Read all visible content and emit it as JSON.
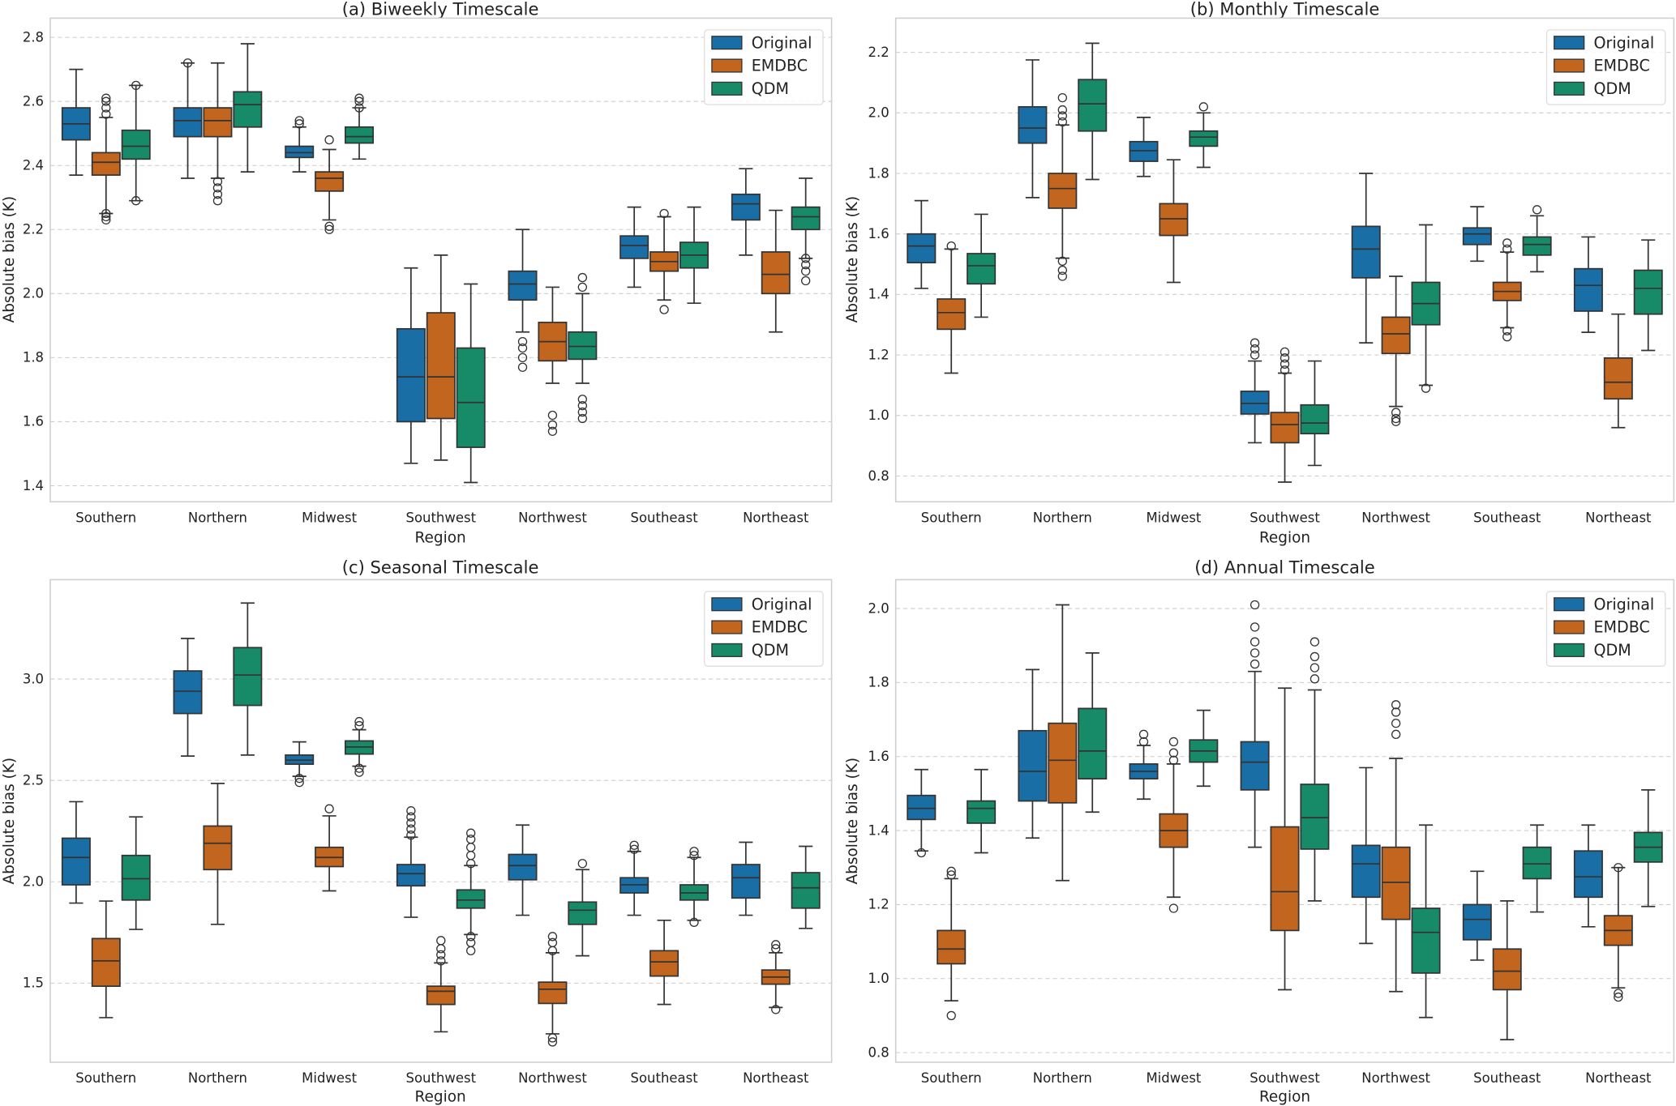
{
  "legend": [
    "Original",
    "EMDBC",
    "QDM"
  ],
  "colors": {
    "Original": "#1a6ea6",
    "EMDBC": "#c2651f",
    "QDM": "#178a68"
  },
  "chart_data": [
    {
      "type": "box",
      "title": "(a) Biweekly Timescale",
      "xlabel": "Region",
      "ylabel": "Absolute bias (K)",
      "ylim": [
        1.35,
        2.86
      ],
      "yticks": [
        1.4,
        1.6,
        1.8,
        2.0,
        2.2,
        2.4,
        2.6,
        2.8
      ],
      "ytick_labels": [
        "1.4",
        "1.6",
        "1.8",
        "2.0",
        "2.2",
        "2.4",
        "2.6",
        "2.8"
      ],
      "grid": "y dashed",
      "legend_position": "top-right",
      "categories": [
        "Southern",
        "Northern",
        "Midwest",
        "Southwest",
        "Northwest",
        "Southeast",
        "Northeast"
      ],
      "series": [
        {
          "name": "Original",
          "boxes": [
            [
              2.37,
              2.48,
              2.53,
              2.58,
              2.7
            ],
            [
              2.36,
              2.49,
              2.54,
              2.58,
              2.72
            ],
            [
              2.38,
              2.425,
              2.44,
              2.46,
              2.52
            ],
            [
              1.47,
              1.6,
              1.74,
              1.89,
              2.08
            ],
            [
              1.88,
              1.98,
              2.03,
              2.07,
              2.2
            ],
            [
              2.02,
              2.11,
              2.15,
              2.18,
              2.27
            ],
            [
              2.12,
              2.23,
              2.28,
              2.31,
              2.39
            ]
          ],
          "outliers": [
            [],
            [
              2.72
            ],
            [
              2.53,
              2.54
            ],
            [],
            [
              1.77,
              1.8,
              1.83,
              1.85
            ],
            [],
            []
          ]
        },
        {
          "name": "EMDBC",
          "boxes": [
            [
              2.25,
              2.37,
              2.41,
              2.44,
              2.55
            ],
            [
              2.36,
              2.49,
              2.54,
              2.58,
              2.72
            ],
            [
              2.23,
              2.32,
              2.36,
              2.38,
              2.45
            ],
            [
              1.48,
              1.61,
              1.74,
              1.94,
              2.12
            ],
            [
              1.72,
              1.79,
              1.85,
              1.91,
              2.02
            ],
            [
              1.98,
              2.07,
              2.1,
              2.13,
              2.24
            ],
            [
              1.88,
              2.0,
              2.06,
              2.13,
              2.26
            ]
          ],
          "outliers": [
            [
              2.56,
              2.58,
              2.6,
              2.61,
              2.23,
              2.24,
              2.25
            ],
            [
              2.29,
              2.31,
              2.33,
              2.35
            ],
            [
              2.48,
              2.21,
              2.2
            ],
            [],
            [
              1.57,
              1.59,
              1.62
            ],
            [
              2.25,
              1.95
            ],
            []
          ]
        },
        {
          "name": "QDM",
          "boxes": [
            [
              2.29,
              2.42,
              2.46,
              2.51,
              2.65
            ],
            [
              2.38,
              2.52,
              2.59,
              2.63,
              2.78
            ],
            [
              2.42,
              2.47,
              2.49,
              2.52,
              2.58
            ],
            [
              1.41,
              1.52,
              1.66,
              1.83,
              2.03
            ],
            [
              1.72,
              1.795,
              1.835,
              1.88,
              2.0
            ],
            [
              1.97,
              2.08,
              2.12,
              2.16,
              2.27
            ],
            [
              2.11,
              2.2,
              2.24,
              2.27,
              2.36
            ]
          ],
          "outliers": [
            [
              2.65,
              2.29
            ],
            [],
            [
              2.58,
              2.6,
              2.61
            ],
            [],
            [
              1.61,
              1.63,
              1.65,
              1.67,
              2.02,
              2.05
            ],
            [],
            [
              2.04,
              2.07,
              2.09,
              2.11
            ]
          ]
        }
      ]
    },
    {
      "type": "box",
      "title": "(b) Monthly Timescale",
      "xlabel": "Region",
      "ylabel": "Absolute bias (K)",
      "ylim": [
        0.715,
        2.313
      ],
      "yticks": [
        0.8,
        1.0,
        1.2,
        1.4,
        1.6,
        1.8,
        2.0,
        2.2
      ],
      "ytick_labels": [
        "0.8",
        "1.0",
        "1.2",
        "1.4",
        "1.6",
        "1.8",
        "2.0",
        "2.2"
      ],
      "grid": "y dashed",
      "legend_position": "top-right",
      "categories": [
        "Southern",
        "Northern",
        "Midwest",
        "Southwest",
        "Northwest",
        "Southeast",
        "Northeast"
      ],
      "series": [
        {
          "name": "Original",
          "boxes": [
            [
              1.42,
              1.505,
              1.56,
              1.6,
              1.71
            ],
            [
              1.72,
              1.9,
              1.95,
              2.02,
              2.175
            ],
            [
              1.79,
              1.84,
              1.875,
              1.905,
              1.985
            ],
            [
              0.91,
              1.005,
              1.04,
              1.08,
              1.18
            ],
            [
              1.24,
              1.455,
              1.55,
              1.625,
              1.8
            ],
            [
              1.51,
              1.565,
              1.6,
              1.62,
              1.69
            ],
            [
              1.275,
              1.345,
              1.43,
              1.485,
              1.59
            ]
          ],
          "outliers": [
            [],
            [],
            [],
            [
              1.2,
              1.22,
              1.24
            ],
            [],
            [],
            []
          ]
        },
        {
          "name": "EMDBC",
          "boxes": [
            [
              1.14,
              1.285,
              1.34,
              1.385,
              1.55
            ],
            [
              1.52,
              1.685,
              1.75,
              1.8,
              1.96
            ],
            [
              1.44,
              1.595,
              1.65,
              1.7,
              1.845
            ],
            [
              0.78,
              0.91,
              0.97,
              1.01,
              1.14
            ],
            [
              1.03,
              1.205,
              1.27,
              1.325,
              1.46
            ],
            [
              1.29,
              1.38,
              1.41,
              1.44,
              1.54
            ],
            [
              0.96,
              1.055,
              1.11,
              1.19,
              1.335
            ]
          ],
          "outliers": [
            [
              1.56
            ],
            [
              1.97,
              1.99,
              2.01,
              2.05,
              1.46,
              1.48,
              1.51
            ],
            [],
            [
              1.15,
              1.17,
              1.19,
              1.21
            ],
            [
              0.98,
              0.99,
              1.01
            ],
            [
              1.55,
              1.57,
              1.26,
              1.28
            ],
            []
          ]
        },
        {
          "name": "QDM",
          "boxes": [
            [
              1.325,
              1.435,
              1.495,
              1.535,
              1.665
            ],
            [
              1.78,
              1.94,
              2.03,
              2.11,
              2.23
            ],
            [
              1.82,
              1.89,
              1.92,
              1.94,
              2.0
            ],
            [
              0.835,
              0.94,
              0.975,
              1.035,
              1.18
            ],
            [
              1.1,
              1.3,
              1.37,
              1.44,
              1.63
            ],
            [
              1.475,
              1.53,
              1.565,
              1.59,
              1.66
            ],
            [
              1.215,
              1.335,
              1.42,
              1.48,
              1.58
            ]
          ],
          "outliers": [
            [],
            [],
            [
              2.02
            ],
            [],
            [
              1.09
            ],
            [
              1.68
            ],
            []
          ]
        }
      ]
    },
    {
      "type": "box",
      "title": "(c) Seasonal Timescale",
      "xlabel": "Region",
      "ylabel": "Absolute bias (K)",
      "ylim": [
        1.11,
        3.49
      ],
      "yticks": [
        1.5,
        2.0,
        2.5,
        3.0
      ],
      "ytick_labels": [
        "1.5",
        "2.0",
        "2.5",
        "3.0"
      ],
      "grid": "y dashed",
      "legend_position": "top-right",
      "categories": [
        "Southern",
        "Northern",
        "Midwest",
        "Southwest",
        "Northwest",
        "Southeast",
        "Northeast"
      ],
      "series": [
        {
          "name": "Original",
          "boxes": [
            [
              1.895,
              1.985,
              2.12,
              2.215,
              2.395
            ],
            [
              2.62,
              2.83,
              2.94,
              3.04,
              3.2
            ],
            [
              2.52,
              2.58,
              2.6,
              2.625,
              2.69
            ],
            [
              1.825,
              1.98,
              2.04,
              2.085,
              2.22
            ],
            [
              1.835,
              2.01,
              2.08,
              2.135,
              2.28
            ],
            [
              1.835,
              1.945,
              1.985,
              2.02,
              2.15
            ],
            [
              1.835,
              1.92,
              2.02,
              2.085,
              2.195
            ]
          ],
          "outliers": [
            [],
            [],
            [
              2.49,
              2.51
            ],
            [
              2.23,
              2.26,
              2.29,
              2.32,
              2.35
            ],
            [],
            [
              2.16,
              2.18
            ],
            []
          ]
        },
        {
          "name": "EMDBC",
          "boxes": [
            [
              1.33,
              1.485,
              1.61,
              1.72,
              1.905
            ],
            [
              1.79,
              2.06,
              2.19,
              2.275,
              2.485
            ],
            [
              1.955,
              2.075,
              2.12,
              2.17,
              2.325
            ],
            [
              1.26,
              1.395,
              1.46,
              1.485,
              1.6
            ],
            [
              1.25,
              1.4,
              1.47,
              1.505,
              1.65
            ],
            [
              1.395,
              1.535,
              1.605,
              1.66,
              1.81
            ],
            [
              1.38,
              1.495,
              1.53,
              1.565,
              1.65
            ]
          ],
          "outliers": [
            [],
            [],
            [
              2.36
            ],
            [
              1.61,
              1.64,
              1.67,
              1.71
            ],
            [
              1.66,
              1.7,
              1.73,
              1.21,
              1.23
            ],
            [],
            [
              1.67,
              1.69,
              1.37
            ]
          ]
        },
        {
          "name": "QDM",
          "boxes": [
            [
              1.765,
              1.91,
              2.015,
              2.13,
              2.32
            ],
            [
              2.625,
              2.87,
              3.02,
              3.155,
              3.375
            ],
            [
              2.57,
              2.63,
              2.665,
              2.695,
              2.75
            ],
            [
              1.74,
              1.87,
              1.91,
              1.96,
              2.08
            ],
            [
              1.635,
              1.79,
              1.86,
              1.9,
              2.06
            ],
            [
              1.81,
              1.91,
              1.945,
              1.985,
              2.12
            ],
            [
              1.77,
              1.87,
              1.97,
              2.045,
              2.175
            ]
          ],
          "outliers": [
            [],
            [],
            [
              2.54,
              2.56,
              2.77,
              2.79
            ],
            [
              2.09,
              2.13,
              2.17,
              2.21,
              2.24,
              1.66,
              1.7,
              1.73
            ],
            [
              2.09
            ],
            [
              2.13,
              2.15,
              1.8
            ],
            []
          ]
        }
      ]
    },
    {
      "type": "box",
      "title": "(d) Annual Timescale",
      "xlabel": "Region",
      "ylabel": "Absolute bias (K)",
      "ylim": [
        0.774,
        2.078
      ],
      "yticks": [
        0.8,
        1.0,
        1.2,
        1.4,
        1.6,
        1.8,
        2.0
      ],
      "ytick_labels": [
        "0.8",
        "1.0",
        "1.2",
        "1.4",
        "1.6",
        "1.8",
        "2.0"
      ],
      "grid": "y dashed",
      "legend_position": "top-right",
      "categories": [
        "Southern",
        "Northern",
        "Midwest",
        "Southwest",
        "Northwest",
        "Southeast",
        "Northeast"
      ],
      "series": [
        {
          "name": "Original",
          "boxes": [
            [
              1.345,
              1.43,
              1.46,
              1.495,
              1.565
            ],
            [
              1.38,
              1.48,
              1.56,
              1.67,
              1.835
            ],
            [
              1.485,
              1.54,
              1.56,
              1.58,
              1.63
            ],
            [
              1.355,
              1.51,
              1.585,
              1.64,
              1.83
            ],
            [
              1.095,
              1.22,
              1.31,
              1.36,
              1.57
            ],
            [
              1.05,
              1.105,
              1.16,
              1.2,
              1.29
            ],
            [
              1.14,
              1.22,
              1.275,
              1.345,
              1.415
            ]
          ],
          "outliers": [
            [
              1.34
            ],
            [],
            [
              1.64,
              1.66
            ],
            [
              1.85,
              1.88,
              1.91,
              1.95,
              2.01
            ],
            [],
            [],
            []
          ]
        },
        {
          "name": "EMDBC",
          "boxes": [
            [
              0.94,
              1.04,
              1.08,
              1.13,
              1.27
            ],
            [
              1.265,
              1.475,
              1.59,
              1.69,
              2.01
            ],
            [
              1.22,
              1.355,
              1.4,
              1.445,
              1.58
            ],
            [
              0.97,
              1.13,
              1.235,
              1.41,
              1.785
            ],
            [
              0.965,
              1.16,
              1.26,
              1.355,
              1.595
            ],
            [
              0.835,
              0.97,
              1.02,
              1.08,
              1.21
            ],
            [
              0.975,
              1.09,
              1.13,
              1.17,
              1.3
            ]
          ],
          "outliers": [
            [
              1.28,
              1.29,
              0.9
            ],
            [],
            [
              1.59,
              1.61,
              1.64,
              1.19
            ],
            [],
            [
              1.66,
              1.69,
              1.72,
              1.74
            ],
            [],
            [
              1.3,
              0.95,
              0.96
            ]
          ]
        },
        {
          "name": "QDM",
          "boxes": [
            [
              1.34,
              1.42,
              1.46,
              1.48,
              1.565
            ],
            [
              1.45,
              1.54,
              1.615,
              1.73,
              1.88
            ],
            [
              1.52,
              1.585,
              1.615,
              1.645,
              1.725
            ],
            [
              1.21,
              1.35,
              1.435,
              1.525,
              1.78
            ],
            [
              0.895,
              1.015,
              1.125,
              1.19,
              1.415
            ],
            [
              1.18,
              1.27,
              1.31,
              1.355,
              1.415
            ],
            [
              1.195,
              1.315,
              1.355,
              1.395,
              1.51
            ]
          ],
          "outliers": [
            [],
            [],
            [],
            [
              1.81,
              1.84,
              1.87,
              1.91
            ],
            [],
            [],
            []
          ]
        }
      ]
    }
  ]
}
